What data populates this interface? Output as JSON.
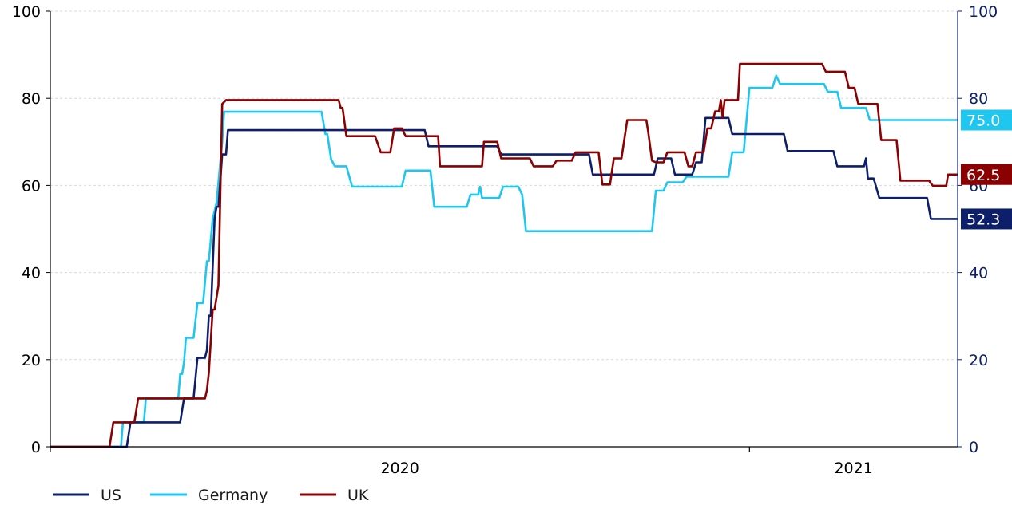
{
  "chart_data": {
    "type": "line",
    "title": "",
    "xlabel": "",
    "ylabel": "",
    "ylim": [
      0,
      100
    ],
    "y_ticks": [
      "0",
      "20",
      "40",
      "60",
      "80",
      "100"
    ],
    "x_ticks": [
      "2020",
      "2021"
    ],
    "grid": "horizontal dashed",
    "legend_position": "bottom-left",
    "x_domain": [
      "2020-01-01",
      "2021-04-20"
    ],
    "colors": {
      "US": "#0d1f6b",
      "Germany": "#1ec6f0",
      "UK": "#8b0000",
      "right_axis": "#0d1f6b",
      "left_axis": "#000000"
    },
    "series": [
      {
        "name": "US",
        "color": "#0d1f6b",
        "end_label": "52.3",
        "points": [
          [
            "2020-01-01",
            0
          ],
          [
            "2020-02-10",
            0
          ],
          [
            "2020-02-12",
            5.6
          ],
          [
            "2020-03-09",
            5.6
          ],
          [
            "2020-03-11",
            11.1
          ],
          [
            "2020-03-16",
            11.1
          ],
          [
            "2020-03-18",
            20.4
          ],
          [
            "2020-03-22",
            20.4
          ],
          [
            "2020-03-23",
            22.2
          ],
          [
            "2020-03-24",
            30.1
          ],
          [
            "2020-03-25",
            30.1
          ],
          [
            "2020-03-27",
            52.3
          ],
          [
            "2020-03-28",
            55.1
          ],
          [
            "2020-03-29",
            55.1
          ],
          [
            "2020-03-31",
            67.1
          ],
          [
            "2020-04-02",
            67.1
          ],
          [
            "2020-04-03",
            72.7
          ],
          [
            "2020-07-15",
            72.7
          ],
          [
            "2020-07-17",
            69.0
          ],
          [
            "2020-08-22",
            69.0
          ],
          [
            "2020-08-24",
            67.1
          ],
          [
            "2020-10-09",
            67.1
          ],
          [
            "2020-10-11",
            62.5
          ],
          [
            "2020-11-12",
            62.5
          ],
          [
            "2020-11-14",
            66.2
          ],
          [
            "2020-11-21",
            66.2
          ],
          [
            "2020-11-23",
            62.5
          ],
          [
            "2020-12-02",
            62.5
          ],
          [
            "2020-12-04",
            65.3
          ],
          [
            "2020-12-07",
            65.3
          ],
          [
            "2020-12-09",
            75.5
          ],
          [
            "2020-12-21",
            75.5
          ],
          [
            "2020-12-23",
            71.8
          ],
          [
            "2021-01-19",
            71.8
          ],
          [
            "2021-01-21",
            67.9
          ],
          [
            "2021-02-14",
            67.9
          ],
          [
            "2021-02-16",
            64.4
          ],
          [
            "2021-03-02",
            64.4
          ],
          [
            "2021-03-03",
            66.2
          ],
          [
            "2021-03-04",
            61.6
          ],
          [
            "2021-03-07",
            61.6
          ],
          [
            "2021-03-10",
            57.1
          ],
          [
            "2021-04-04",
            57.1
          ],
          [
            "2021-04-06",
            52.3
          ],
          [
            "2021-04-20",
            52.3
          ]
        ]
      },
      {
        "name": "Germany",
        "color": "#1ec6f0",
        "end_label": "75.0",
        "points": [
          [
            "2020-01-01",
            0
          ],
          [
            "2020-02-07",
            0
          ],
          [
            "2020-02-08",
            5.6
          ],
          [
            "2020-02-19",
            5.6
          ],
          [
            "2020-02-20",
            11.1
          ],
          [
            "2020-03-08",
            11.1
          ],
          [
            "2020-03-09",
            16.7
          ],
          [
            "2020-03-10",
            16.7
          ],
          [
            "2020-03-11",
            19.4
          ],
          [
            "2020-03-12",
            25.0
          ],
          [
            "2020-03-16",
            25.0
          ],
          [
            "2020-03-18",
            33.0
          ],
          [
            "2020-03-21",
            33.0
          ],
          [
            "2020-03-23",
            42.6
          ],
          [
            "2020-03-24",
            42.6
          ],
          [
            "2020-03-26",
            52.3
          ],
          [
            "2020-03-28",
            56.0
          ],
          [
            "2020-03-31",
            70.0
          ],
          [
            "2020-04-01",
            76.9
          ],
          [
            "2020-05-22",
            76.9
          ],
          [
            "2020-05-24",
            71.8
          ],
          [
            "2020-05-25",
            71.8
          ],
          [
            "2020-05-27",
            66.0
          ],
          [
            "2020-05-29",
            64.4
          ],
          [
            "2020-06-04",
            64.4
          ],
          [
            "2020-06-07",
            59.7
          ],
          [
            "2020-07-03",
            59.7
          ],
          [
            "2020-07-05",
            63.4
          ],
          [
            "2020-07-18",
            63.4
          ],
          [
            "2020-07-20",
            55.1
          ],
          [
            "2020-08-06",
            55.1
          ],
          [
            "2020-08-08",
            57.9
          ],
          [
            "2020-08-12",
            57.9
          ],
          [
            "2020-08-13",
            59.7
          ],
          [
            "2020-08-14",
            57.1
          ],
          [
            "2020-08-23",
            57.1
          ],
          [
            "2020-08-25",
            59.7
          ],
          [
            "2020-09-02",
            59.7
          ],
          [
            "2020-09-04",
            57.9
          ],
          [
            "2020-09-06",
            49.5
          ],
          [
            "2020-11-11",
            49.5
          ],
          [
            "2020-11-13",
            58.8
          ],
          [
            "2020-11-17",
            58.8
          ],
          [
            "2020-11-19",
            60.7
          ],
          [
            "2020-11-27",
            60.7
          ],
          [
            "2020-11-29",
            62.0
          ],
          [
            "2020-12-21",
            62.0
          ],
          [
            "2020-12-23",
            67.6
          ],
          [
            "2020-12-29",
            67.6
          ],
          [
            "2021-01-01",
            82.4
          ],
          [
            "2021-01-13",
            82.4
          ],
          [
            "2021-01-15",
            85.2
          ],
          [
            "2021-01-17",
            83.3
          ],
          [
            "2021-02-09",
            83.3
          ],
          [
            "2021-02-11",
            81.5
          ],
          [
            "2021-02-16",
            81.5
          ],
          [
            "2021-02-18",
            77.8
          ],
          [
            "2021-03-03",
            77.8
          ],
          [
            "2021-03-05",
            75.0
          ],
          [
            "2021-04-20",
            75.0
          ]
        ]
      },
      {
        "name": "UK",
        "color": "#8b0000",
        "end_label": "62.5",
        "points": [
          [
            "2020-01-01",
            0
          ],
          [
            "2020-02-01",
            0
          ],
          [
            "2020-02-03",
            5.6
          ],
          [
            "2020-02-14",
            5.6
          ],
          [
            "2020-02-16",
            11.1
          ],
          [
            "2020-03-22",
            11.1
          ],
          [
            "2020-03-23",
            13.0
          ],
          [
            "2020-03-24",
            17.0
          ],
          [
            "2020-03-26",
            31.5
          ],
          [
            "2020-03-27",
            31.5
          ],
          [
            "2020-03-29",
            37.0
          ],
          [
            "2020-03-31",
            78.7
          ],
          [
            "2020-04-02",
            79.6
          ],
          [
            "2020-05-31",
            79.6
          ],
          [
            "2020-06-01",
            77.8
          ],
          [
            "2020-06-02",
            77.8
          ],
          [
            "2020-06-04",
            71.3
          ],
          [
            "2020-06-19",
            71.3
          ],
          [
            "2020-06-22",
            67.6
          ],
          [
            "2020-06-27",
            67.6
          ],
          [
            "2020-06-29",
            73.1
          ],
          [
            "2020-07-03",
            73.1
          ],
          [
            "2020-07-05",
            71.3
          ],
          [
            "2020-07-22",
            71.3
          ],
          [
            "2020-07-23",
            64.4
          ],
          [
            "2020-08-14",
            64.4
          ],
          [
            "2020-08-15",
            70.0
          ],
          [
            "2020-08-22",
            70.0
          ],
          [
            "2020-08-24",
            66.2
          ],
          [
            "2020-09-08",
            66.2
          ],
          [
            "2020-09-10",
            64.4
          ],
          [
            "2020-09-20",
            64.4
          ],
          [
            "2020-09-22",
            65.7
          ],
          [
            "2020-09-30",
            65.7
          ],
          [
            "2020-10-02",
            67.6
          ],
          [
            "2020-10-14",
            67.6
          ],
          [
            "2020-10-16",
            60.2
          ],
          [
            "2020-10-20",
            60.2
          ],
          [
            "2020-10-22",
            66.2
          ],
          [
            "2020-10-26",
            66.2
          ],
          [
            "2020-10-29",
            75.0
          ],
          [
            "2020-11-08",
            75.0
          ],
          [
            "2020-11-09",
            72.2
          ],
          [
            "2020-11-11",
            65.7
          ],
          [
            "2020-11-13",
            65.3
          ],
          [
            "2020-11-17",
            65.3
          ],
          [
            "2020-11-19",
            67.6
          ],
          [
            "2020-11-28",
            67.6
          ],
          [
            "2020-11-30",
            64.4
          ],
          [
            "2020-12-02",
            64.4
          ],
          [
            "2020-12-04",
            67.6
          ],
          [
            "2020-12-08",
            67.6
          ],
          [
            "2020-12-10",
            73.1
          ],
          [
            "2020-12-12",
            73.1
          ],
          [
            "2020-12-14",
            77.0
          ],
          [
            "2020-12-16",
            77.0
          ],
          [
            "2020-12-17",
            79.6
          ],
          [
            "2020-12-18",
            75.5
          ],
          [
            "2020-12-19",
            79.6
          ],
          [
            "2020-12-26",
            79.6
          ],
          [
            "2020-12-27",
            87.9
          ],
          [
            "2021-02-08",
            87.9
          ],
          [
            "2021-02-10",
            86.1
          ],
          [
            "2021-02-20",
            86.1
          ],
          [
            "2021-02-22",
            82.4
          ],
          [
            "2021-02-25",
            82.4
          ],
          [
            "2021-02-27",
            78.7
          ],
          [
            "2021-03-09",
            78.7
          ],
          [
            "2021-03-11",
            70.4
          ],
          [
            "2021-03-19",
            70.4
          ],
          [
            "2021-03-21",
            61.1
          ],
          [
            "2021-04-05",
            61.1
          ],
          [
            "2021-04-07",
            59.9
          ],
          [
            "2021-04-14",
            59.9
          ],
          [
            "2021-04-15",
            62.5
          ],
          [
            "2021-04-20",
            62.5
          ]
        ]
      }
    ]
  }
}
